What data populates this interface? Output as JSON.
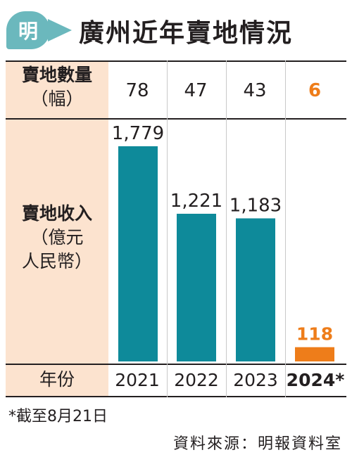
{
  "header": {
    "logo_char": "明",
    "title": "廣州近年賣地情況"
  },
  "table": {
    "count_label": {
      "line1": "賣地數量",
      "line2": "（幅）"
    },
    "revenue_label": {
      "line1": "賣地收入",
      "line2": "（億元",
      "line3": "人民幣）"
    },
    "year_label": "年份"
  },
  "chart_data": {
    "type": "bar",
    "categories": [
      "2021",
      "2022",
      "2023",
      "2024*"
    ],
    "counts": [
      "78",
      "47",
      "43",
      "6"
    ],
    "values": [
      1779,
      1221,
      1183,
      118
    ],
    "value_labels": [
      "1,779",
      "1,221",
      "1,183",
      "118"
    ],
    "highlight_index": 3,
    "colors": {
      "bar": "#0e8a9a",
      "highlight": "#ee7d1a",
      "label_bg": "#fce3cf"
    },
    "ylim": [
      0,
      1779
    ]
  },
  "footnote": "*截至8月21日",
  "source": "資料來源：明報資料室"
}
